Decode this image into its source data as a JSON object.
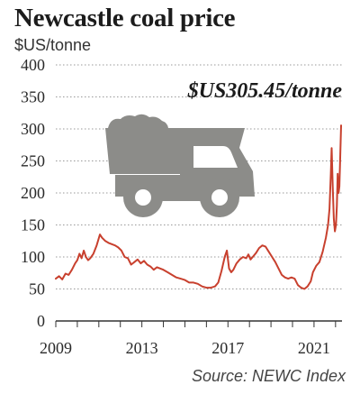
{
  "chart_data": {
    "type": "line",
    "title": "Newcastle coal price",
    "ylabel": "$US/tonne",
    "annotation": "$US305.45/tonne",
    "source": "Source: NEWC Index",
    "xlim": [
      2009,
      2022.3
    ],
    "ylim": [
      0,
      400
    ],
    "y_ticks": [
      0,
      50,
      100,
      150,
      200,
      250,
      300,
      350,
      400
    ],
    "x_ticks": [
      2009,
      2013,
      2017,
      2021
    ],
    "grid": true,
    "icon": "coal-truck-icon",
    "series": [
      {
        "color": "#c8402e",
        "points": [
          [
            2009.0,
            66
          ],
          [
            2009.15,
            70
          ],
          [
            2009.3,
            65
          ],
          [
            2009.45,
            74
          ],
          [
            2009.6,
            72
          ],
          [
            2009.75,
            80
          ],
          [
            2009.9,
            90
          ],
          [
            2010.0,
            95
          ],
          [
            2010.1,
            105
          ],
          [
            2010.2,
            98
          ],
          [
            2010.3,
            110
          ],
          [
            2010.4,
            100
          ],
          [
            2010.5,
            95
          ],
          [
            2010.6,
            98
          ],
          [
            2010.75,
            105
          ],
          [
            2010.9,
            118
          ],
          [
            2011.05,
            135
          ],
          [
            2011.15,
            130
          ],
          [
            2011.3,
            125
          ],
          [
            2011.45,
            122
          ],
          [
            2011.6,
            120
          ],
          [
            2011.75,
            118
          ],
          [
            2011.9,
            115
          ],
          [
            2012.05,
            110
          ],
          [
            2012.2,
            100
          ],
          [
            2012.35,
            98
          ],
          [
            2012.5,
            88
          ],
          [
            2012.65,
            92
          ],
          [
            2012.8,
            96
          ],
          [
            2012.95,
            90
          ],
          [
            2013.1,
            94
          ],
          [
            2013.25,
            88
          ],
          [
            2013.4,
            85
          ],
          [
            2013.55,
            80
          ],
          [
            2013.7,
            84
          ],
          [
            2013.85,
            82
          ],
          [
            2014.0,
            80
          ],
          [
            2014.2,
            76
          ],
          [
            2014.4,
            72
          ],
          [
            2014.6,
            68
          ],
          [
            2014.8,
            66
          ],
          [
            2015.0,
            64
          ],
          [
            2015.2,
            60
          ],
          [
            2015.4,
            60
          ],
          [
            2015.6,
            58
          ],
          [
            2015.8,
            54
          ],
          [
            2016.0,
            52
          ],
          [
            2016.2,
            52
          ],
          [
            2016.4,
            54
          ],
          [
            2016.55,
            60
          ],
          [
            2016.7,
            78
          ],
          [
            2016.85,
            100
          ],
          [
            2016.95,
            110
          ],
          [
            2017.05,
            82
          ],
          [
            2017.15,
            76
          ],
          [
            2017.25,
            80
          ],
          [
            2017.4,
            90
          ],
          [
            2017.55,
            96
          ],
          [
            2017.7,
            100
          ],
          [
            2017.85,
            98
          ],
          [
            2017.95,
            104
          ],
          [
            2018.05,
            96
          ],
          [
            2018.15,
            100
          ],
          [
            2018.3,
            106
          ],
          [
            2018.45,
            114
          ],
          [
            2018.6,
            118
          ],
          [
            2018.75,
            116
          ],
          [
            2018.9,
            108
          ],
          [
            2019.05,
            100
          ],
          [
            2019.2,
            92
          ],
          [
            2019.35,
            82
          ],
          [
            2019.5,
            72
          ],
          [
            2019.65,
            68
          ],
          [
            2019.8,
            66
          ],
          [
            2019.95,
            68
          ],
          [
            2020.1,
            66
          ],
          [
            2020.25,
            56
          ],
          [
            2020.4,
            52
          ],
          [
            2020.55,
            50
          ],
          [
            2020.7,
            54
          ],
          [
            2020.85,
            62
          ],
          [
            2020.95,
            76
          ],
          [
            2021.1,
            86
          ],
          [
            2021.25,
            92
          ],
          [
            2021.4,
            108
          ],
          [
            2021.55,
            130
          ],
          [
            2021.65,
            150
          ],
          [
            2021.72,
            175
          ],
          [
            2021.78,
            230
          ],
          [
            2021.82,
            270
          ],
          [
            2021.87,
            210
          ],
          [
            2021.92,
            160
          ],
          [
            2021.97,
            140
          ],
          [
            2022.02,
            150
          ],
          [
            2022.06,
            180
          ],
          [
            2022.1,
            230
          ],
          [
            2022.14,
            200
          ],
          [
            2022.18,
            210
          ],
          [
            2022.22,
            260
          ],
          [
            2022.26,
            305.45
          ]
        ]
      }
    ]
  }
}
